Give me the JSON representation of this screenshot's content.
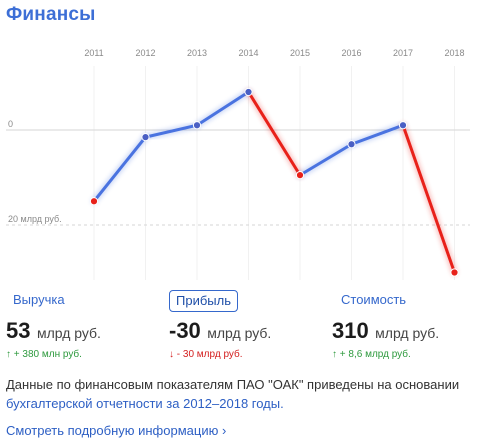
{
  "title": "Финансы",
  "chart_data": {
    "type": "line",
    "x": [
      "2011",
      "2012",
      "2013",
      "2014",
      "2015",
      "2016",
      "2017",
      "2018"
    ],
    "series": [
      {
        "values": [
          -15,
          -1.5,
          1,
          8,
          -9.5,
          -3,
          1,
          -30
        ]
      }
    ],
    "y_tick_labels": [
      {
        "value": 0,
        "label": "0"
      },
      {
        "value": -20,
        "label": "20 млрд руб."
      }
    ],
    "ylim": [
      -33,
      12
    ],
    "grid": "horizontal dashed",
    "colors": {
      "decline": "#e8211a",
      "growth": "#4a73e0",
      "marker": "#4a5fc4"
    },
    "xlabel": "",
    "ylabel": ""
  },
  "tabs": [
    {
      "label": "Выручка"
    },
    {
      "label": "Прибыль",
      "active": true
    },
    {
      "label": "Стоимость"
    }
  ],
  "metrics": [
    {
      "value": "53",
      "unit": "млрд руб.",
      "delta": "↑ + 380 млн руб.",
      "trend": "up"
    },
    {
      "value": "-30",
      "unit": "млрд руб.",
      "delta": "↓ - 30 млрд руб.",
      "trend": "down"
    },
    {
      "value": "310",
      "unit": "млрд руб.",
      "delta": "↑ + 8,6 млрд руб.",
      "trend": "up"
    }
  ],
  "note": {
    "text": "Данные по финансовым показателям ПАО \"ОАК\" приведены на основании ",
    "link": "бухгалтерской отчетности за 2012–2018 годы."
  },
  "more_link": "Смотреть подробную информацию ›"
}
